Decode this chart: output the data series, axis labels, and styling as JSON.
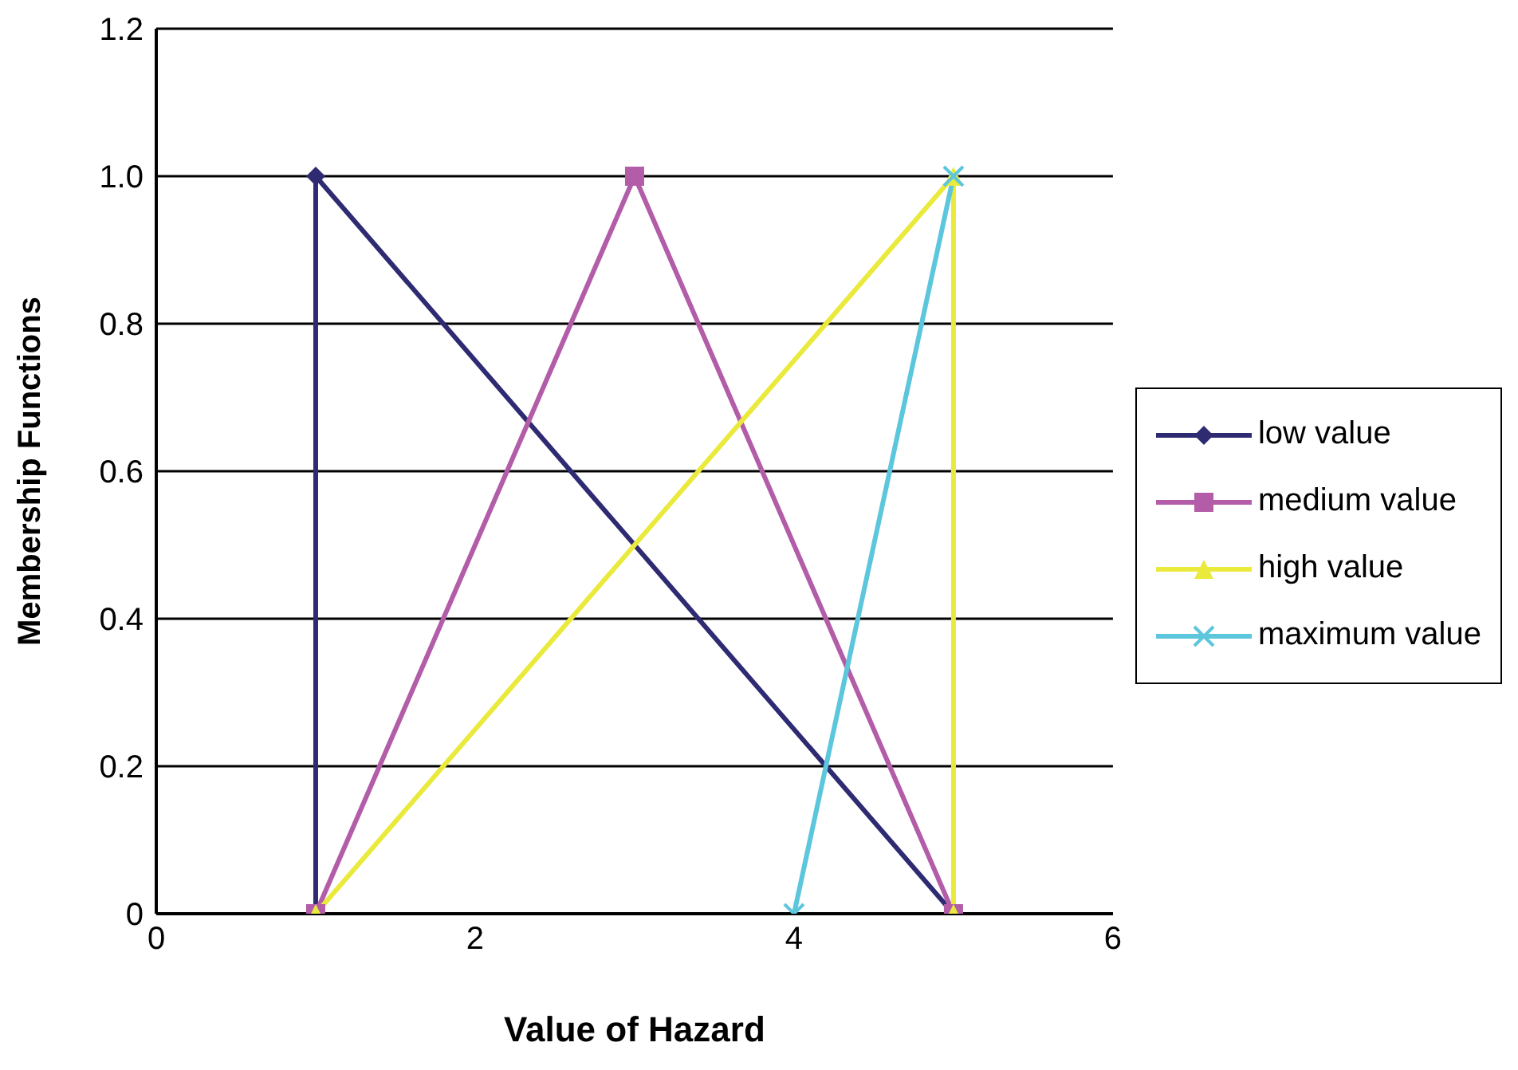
{
  "chart_data": {
    "type": "line",
    "xlabel": "Value of Hazard",
    "ylabel": "Membership Functions",
    "xlim": [
      0,
      6
    ],
    "xticks": [
      0,
      2,
      4,
      6
    ],
    "ylim": [
      0,
      1.2
    ],
    "yticks": [
      0,
      {
        "value": 0.2,
        "label": "0.2"
      },
      {
        "value": 0.4,
        "label": "0.4"
      },
      {
        "value": 0.6,
        "label": "0.6"
      },
      {
        "value": 0.8,
        "label": "0.8"
      },
      {
        "value": 1,
        "label": "1.0"
      },
      {
        "value": 1.2,
        "label": "1.2"
      }
    ],
    "grid": "y",
    "legend": "right",
    "line_style": "solid",
    "series": [
      {
        "name": "low value",
        "color": "#2e2b72",
        "marker": "diamond",
        "x": [
          1,
          1,
          5
        ],
        "values": [
          0,
          1,
          0
        ]
      },
      {
        "name": "medium value",
        "color": "#b35ca8",
        "marker": "square",
        "x": [
          1,
          3,
          5
        ],
        "values": [
          0,
          1,
          0
        ]
      },
      {
        "name": "high value",
        "color": "#eaea3c",
        "marker": "triangle",
        "x": [
          1,
          5,
          5
        ],
        "values": [
          0,
          1,
          0
        ]
      },
      {
        "name": "maximum value",
        "color": "#5cc6dc",
        "marker": "cross",
        "x": [
          4,
          5
        ],
        "values": [
          0,
          1
        ]
      }
    ]
  }
}
